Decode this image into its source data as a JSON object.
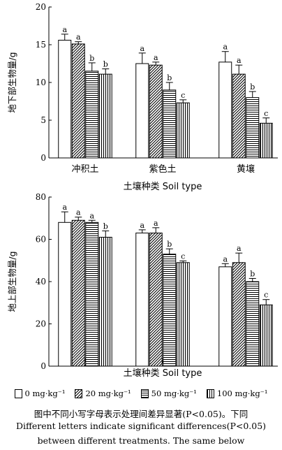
{
  "chart_data": [
    {
      "type": "bar",
      "ylabel": "地下部生物量/g",
      "xlabel": "土壤种类 Soil type",
      "categories": [
        "冲积土",
        "紫色土",
        "黄壤"
      ],
      "ylim": [
        0,
        20
      ],
      "yticks": [
        0,
        5,
        10,
        15,
        20
      ],
      "series": [
        {
          "name": "0 mg·kg⁻¹",
          "values": [
            15.6,
            12.5,
            12.7
          ],
          "errors": [
            0.8,
            1.4,
            1.4
          ],
          "letters": [
            "a",
            "a",
            "a"
          ]
        },
        {
          "name": "20 mg·kg⁻¹",
          "values": [
            15.1,
            12.3,
            11.1
          ],
          "errors": [
            0.3,
            0.4,
            1.2
          ],
          "letters": [
            "a",
            "a",
            "a"
          ]
        },
        {
          "name": "50 mg·kg⁻¹",
          "values": [
            11.5,
            9.0,
            8.0
          ],
          "errors": [
            1.1,
            1.0,
            0.8
          ],
          "letters": [
            "b",
            "b",
            "b"
          ]
        },
        {
          "name": "100 mg·kg⁻¹",
          "values": [
            11.1,
            7.3,
            4.6
          ],
          "errors": [
            0.7,
            0.4,
            0.7
          ],
          "letters": [
            "b",
            "c",
            "c"
          ]
        }
      ]
    },
    {
      "type": "bar",
      "ylabel": "地上部生物量/g",
      "xlabel": "土壤种类 Soil type",
      "categories": [
        "冲积土",
        "紫色土",
        "黄壤"
      ],
      "ylim": [
        0,
        80
      ],
      "yticks": [
        0,
        20,
        40,
        60,
        80
      ],
      "series": [
        {
          "name": "0 mg·kg⁻¹",
          "values": [
            68,
            63,
            47
          ],
          "errors": [
            5,
            1.5,
            1.5
          ],
          "letters": [
            "a",
            "a",
            "a"
          ]
        },
        {
          "name": "20 mg·kg⁻¹",
          "values": [
            69,
            63,
            49
          ],
          "errors": [
            1.5,
            2.5,
            4.5
          ],
          "letters": [
            "a",
            "a",
            "a"
          ]
        },
        {
          "name": "50 mg·kg⁻¹",
          "values": [
            68,
            53,
            40
          ],
          "errors": [
            1,
            2.5,
            1.5
          ],
          "letters": [
            "a",
            "b",
            "b"
          ]
        },
        {
          "name": "100 mg·kg⁻¹",
          "values": [
            61,
            49,
            29
          ],
          "errors": [
            3,
            0.8,
            2.5
          ],
          "letters": [
            "b",
            "c",
            "c"
          ]
        }
      ]
    }
  ],
  "legend": {
    "entries": [
      "0 mg·kg⁻¹",
      "20 mg·kg⁻¹",
      "50 mg·kg⁻¹",
      "100 mg·kg⁻¹"
    ]
  },
  "caption": {
    "line1": "图中不同小写字母表示处理间差异显著(P<0.05)。下同",
    "line2": "Different letters indicate significant differences(P<0.05)",
    "line3": "between different treatments. The same below"
  }
}
